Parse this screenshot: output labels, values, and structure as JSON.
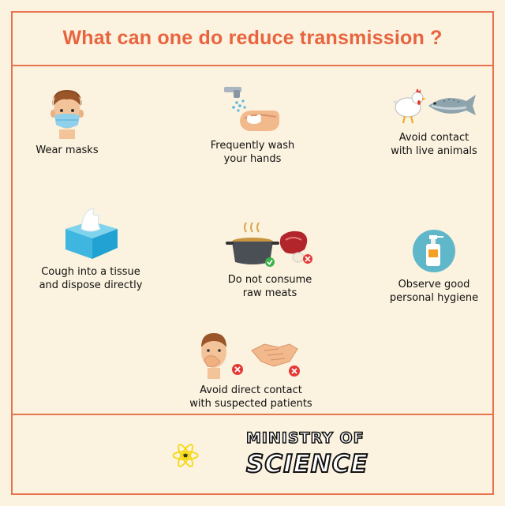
{
  "title": "What can one do reduce transmission ?",
  "items": [
    {
      "icon": "face-mask-icon",
      "label": "Wear masks"
    },
    {
      "icon": "hand-washing-icon",
      "label": "Frequently wash\nyour hands"
    },
    {
      "icon": "chicken-fish-icon",
      "label": "Avoid contact\nwith live animals"
    },
    {
      "icon": "tissue-box-icon",
      "label": "Cough into a tissue\nand dispose directly"
    },
    {
      "icon": "cooking-pot-meat-icon",
      "label": "Do not consume\nraw meats"
    },
    {
      "icon": "hand-sanitizer-icon",
      "label": "Observe good\npersonal hygiene"
    },
    {
      "icon": "sick-person-handshake-icon",
      "label": "Avoid direct contact\nwith suspected patients"
    }
  ],
  "brand": {
    "line1": "MINISTRY OF",
    "line2": "SCIENCE",
    "logo_icon": "atom-logo-icon"
  },
  "colors": {
    "accent": "#e8734e",
    "background": "#fbf2df",
    "logo_yellow": "#f5d90f"
  }
}
